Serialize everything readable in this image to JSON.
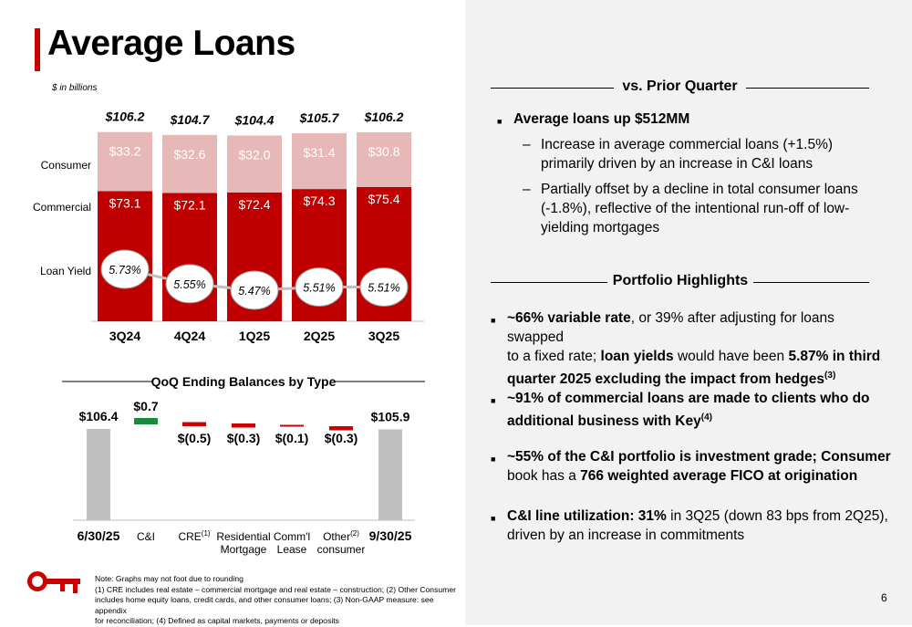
{
  "header": {
    "title": "Average Loans",
    "units": "$ in billions"
  },
  "colors": {
    "consumer": "#e6b8b8",
    "commercial": "#c00000",
    "increase": "#1a8a3a",
    "decrease": "#cc0000",
    "ends": "#bfbfbf",
    "yield_line": "#c0c0c0",
    "accent": "#cc0000"
  },
  "chart_data": [
    {
      "type": "bar",
      "stacked": true,
      "categories": [
        "3Q24",
        "4Q24",
        "1Q25",
        "2Q25",
        "3Q25"
      ],
      "series": [
        {
          "name": "Commercial",
          "values": [
            73.1,
            72.1,
            72.4,
            74.3,
            75.4
          ],
          "labels": [
            "$73.1",
            "$72.1",
            "$72.4",
            "$74.3",
            "$75.4"
          ]
        },
        {
          "name": "Consumer",
          "values": [
            33.2,
            32.6,
            32.0,
            31.4,
            30.8
          ],
          "labels": [
            "$33.2",
            "$32.6",
            "$32.0",
            "$31.4",
            "$30.8"
          ]
        }
      ],
      "totals": [
        "$106.2",
        "$104.7",
        "$104.4",
        "$105.7",
        "$106.2"
      ],
      "line_series": {
        "name": "Loan Yield",
        "values": [
          5.73,
          5.55,
          5.47,
          5.51,
          5.51
        ],
        "labels": [
          "5.73%",
          "5.55%",
          "5.47%",
          "5.51%",
          "5.51%"
        ]
      }
    },
    {
      "type": "bar",
      "subtype": "waterfall",
      "title": "QoQ Ending Balances by Type",
      "categories": [
        "6/30/25",
        "C&I",
        "CRE",
        "Residential Mortgage",
        "Comm'l Lease",
        "Other consumer",
        "9/30/25"
      ],
      "category_lines": [
        [
          "6/30/25"
        ],
        [
          "C&I"
        ],
        [
          "CRE"
        ],
        [
          "Residential",
          "Mortgage"
        ],
        [
          "Comm'l",
          "Lease"
        ],
        [
          "Other",
          "consumer"
        ],
        [
          "9/30/25"
        ]
      ],
      "category_sups": [
        "",
        "",
        "(1)",
        "",
        "",
        "(2)",
        ""
      ],
      "category_bold": [
        true,
        false,
        false,
        false,
        false,
        false,
        true
      ],
      "values": [
        106.4,
        0.7,
        -0.5,
        -0.3,
        -0.1,
        -0.3,
        105.9
      ],
      "labels": [
        "$106.4",
        "$0.7",
        "$(0.5)",
        "$(0.3)",
        "$(0.1)",
        "$(0.3)",
        "$105.9"
      ]
    }
  ],
  "prior_quarter": {
    "heading": "vs. Prior Quarter",
    "bullet": "Average loans up $512MM",
    "subs": [
      [
        "Increase in average commercial loans (+1.5%)",
        "primarily driven by an increase in C&I loans"
      ],
      [
        "Partially offset by a decline in total consumer loans",
        "(-1.8%), reflective of the intentional run-off of low-",
        "yielding mortgages"
      ]
    ]
  },
  "highlights": {
    "heading": "Portfolio Highlights",
    "b1": {
      "bold1": "~66% variable rate",
      "rest1": ", or 39% after adjusting for loans swapped",
      "line2a": "to a fixed rate; ",
      "bold2": "loan yields",
      "line2b": " would have been ",
      "bold3": "5.87% in third",
      "line3": "quarter 2025 excluding the impact from hedges",
      "sup": "(3)"
    },
    "b2": {
      "line1": "~91% of commercial loans are made to clients who do",
      "line2": "additional business with Key",
      "sup": "(4)"
    },
    "b3": {
      "line1": "~55% of the C&I portfolio is investment grade; Consumer",
      "line2a": "book has a ",
      "bold": "766 weighted average FICO at origination"
    },
    "b4": {
      "bold": "C&I line utilization: 31%",
      "rest": " in 3Q25 (down 83 bps from 2Q25),",
      "line2": "driven by an increase in commitments"
    }
  },
  "notes": [
    "Note: Graphs may not foot due to rounding",
    "(1) CRE includes real estate – commercial mortgage and real estate – construction; (2) Other Consumer",
    "includes home equity loans, credit cards, and other consumer loans; (3) Non-GAAP measure: see appendix",
    "for reconciliation; (4) Defined as capital markets, payments or deposits"
  ],
  "page_number": "6",
  "logo": "key-logo"
}
